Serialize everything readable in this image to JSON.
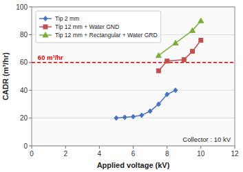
{
  "chart_data": {
    "type": "line",
    "xlabel": "Applied voltage (kV)",
    "ylabel": "CADR (m³/hr)",
    "series": [
      {
        "name": "Tip 2 mm",
        "color": "#4472C4",
        "marker": "diamond",
        "x": [
          5,
          5.5,
          6,
          6.5,
          7,
          7.5,
          8,
          8.5
        ],
        "values": [
          20,
          20.5,
          21,
          22,
          25,
          30,
          37,
          40
        ]
      },
      {
        "name": "Tip 12 mm + Water GND",
        "color": "#C0504D",
        "marker": "square",
        "x": [
          7.5,
          8,
          9,
          9.5,
          10
        ],
        "values": [
          54,
          61,
          62,
          68,
          76
        ]
      },
      {
        "name": "Tip 12 mm + Rectangular + Water GRD",
        "color": "#7AAD3A",
        "marker": "triangle",
        "x": [
          7.5,
          8.5,
          9.5,
          10
        ],
        "values": [
          65,
          74,
          83,
          90
        ]
      }
    ],
    "reference_lines": [
      {
        "value": 60,
        "label": "60 m³/hr",
        "color": "#DD0000",
        "line_style": "dashed"
      }
    ],
    "annotations": [
      "Collector : 10 kV"
    ],
    "xlim": [
      0,
      12
    ],
    "ylim": [
      0,
      100
    ],
    "xticks": [
      0,
      2,
      4,
      6,
      8,
      10,
      12
    ],
    "yticks": [
      0,
      20,
      40,
      60,
      80,
      100
    ],
    "grid": "y",
    "legend": "upper left"
  }
}
